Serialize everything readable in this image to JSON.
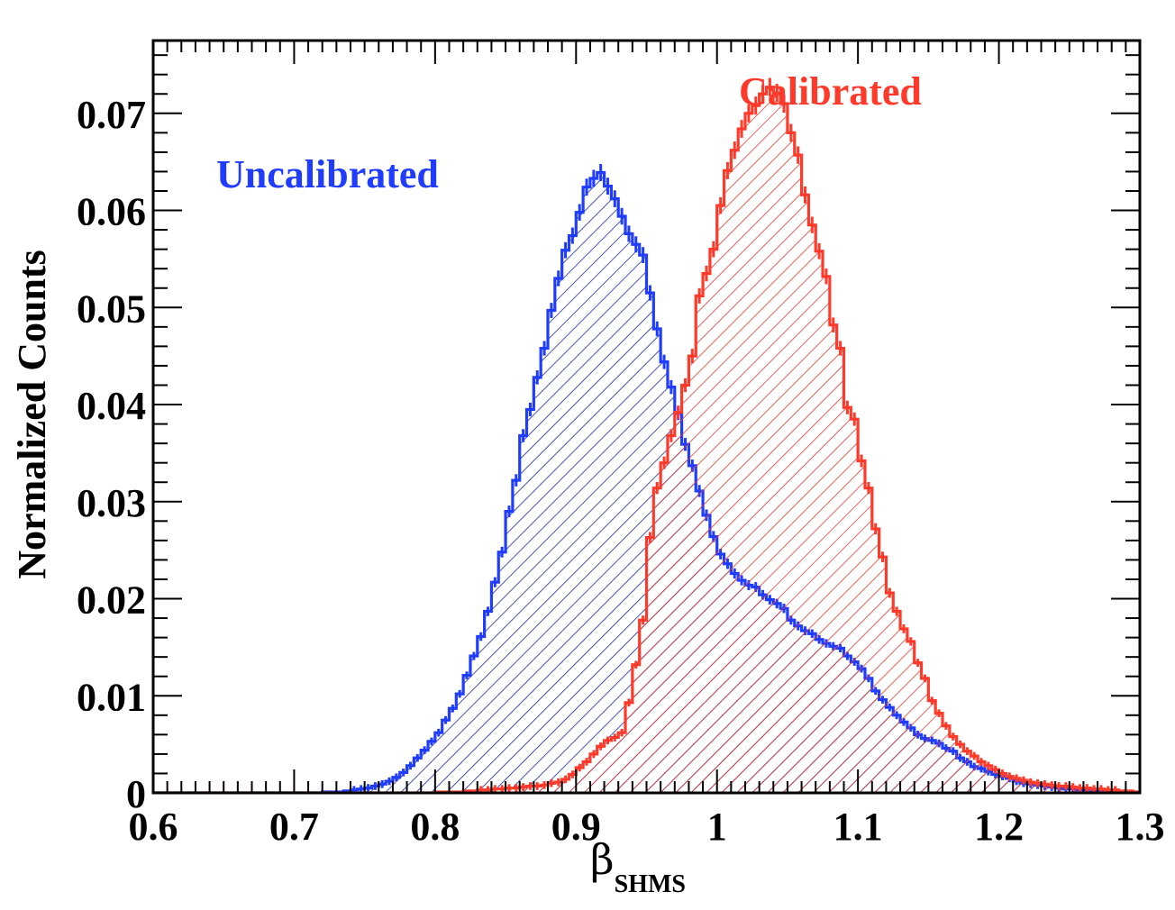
{
  "chart_data": {
    "type": "histogram",
    "title": "",
    "xlabel": "β",
    "xlabel_subscript": "SHMS",
    "ylabel": "Normalized Counts",
    "xlim": [
      0.6,
      1.3
    ],
    "ylim": [
      0,
      0.0775
    ],
    "x_ticks": [
      0.6,
      0.7,
      0.8,
      0.9,
      1.0,
      1.1,
      1.2,
      1.3
    ],
    "x_tick_labels": [
      "0.6",
      "0.7",
      "0.8",
      "0.9",
      "1",
      "1.1",
      "1.2",
      "1.3"
    ],
    "y_ticks": [
      0,
      0.01,
      0.02,
      0.03,
      0.04,
      0.05,
      0.06,
      0.07
    ],
    "y_tick_labels": [
      "0",
      "0.01",
      "0.02",
      "0.03",
      "0.04",
      "0.05",
      "0.06",
      "0.07"
    ],
    "bin_width": 0.005,
    "series": [
      {
        "name": "Uncalibrated",
        "color": "#1f3cff",
        "hatch_color": "#1a2a9a",
        "x_start": 0.6,
        "values": [
          0.0,
          0.0,
          0.0,
          0.0,
          0.0,
          0.0,
          0.0,
          0.0,
          0.0,
          0.0,
          0.0,
          0.0,
          0.0,
          0.0,
          0.0,
          0.0,
          0.0,
          0.0,
          0.0,
          0.0,
          0.0,
          0.0,
          0.0,
          0.0,
          0.0001,
          0.0001,
          0.0001,
          0.0002,
          0.0003,
          0.0004,
          0.0005,
          0.0007,
          0.0009,
          0.0012,
          0.0016,
          0.0021,
          0.0028,
          0.0036,
          0.0044,
          0.0053,
          0.0062,
          0.0075,
          0.0087,
          0.0102,
          0.0121,
          0.0141,
          0.0161,
          0.0187,
          0.0217,
          0.0248,
          0.029,
          0.0322,
          0.0368,
          0.0395,
          0.0428,
          0.0458,
          0.0497,
          0.053,
          0.0559,
          0.0574,
          0.0598,
          0.0624,
          0.0633,
          0.0639,
          0.0625,
          0.0612,
          0.0594,
          0.0576,
          0.0565,
          0.0554,
          0.0515,
          0.0478,
          0.0444,
          0.0418,
          0.0391,
          0.0359,
          0.0337,
          0.0311,
          0.0286,
          0.0264,
          0.0246,
          0.0236,
          0.0226,
          0.0219,
          0.0214,
          0.0212,
          0.0204,
          0.0199,
          0.0195,
          0.019,
          0.0178,
          0.0172,
          0.0167,
          0.0164,
          0.0158,
          0.0154,
          0.0151,
          0.0149,
          0.0141,
          0.0135,
          0.0128,
          0.0118,
          0.0105,
          0.0096,
          0.0088,
          0.008,
          0.0073,
          0.0067,
          0.006,
          0.0056,
          0.0054,
          0.0051,
          0.0046,
          0.0043,
          0.0036,
          0.0032,
          0.0027,
          0.0025,
          0.0022,
          0.0019,
          0.0017,
          0.0015,
          0.0012,
          0.001,
          0.0009,
          0.0008,
          0.0007,
          0.0006,
          0.0005,
          0.0004,
          0.0004,
          0.0003,
          0.0003,
          0.0002,
          0.0002,
          0.0002,
          0.0001,
          0.0001,
          0.0001,
          0.0001
        ]
      },
      {
        "name": "Calibrated",
        "color": "#ff3a2a",
        "hatch_color": "#e23a2e",
        "x_start": 0.6,
        "values": [
          0.0,
          0.0,
          0.0,
          0.0,
          0.0,
          0.0,
          0.0,
          0.0,
          0.0,
          0.0,
          0.0,
          0.0,
          0.0,
          0.0,
          0.0,
          0.0,
          0.0,
          0.0,
          0.0,
          0.0,
          0.0,
          0.0,
          0.0,
          0.0,
          0.0,
          0.0,
          0.0,
          0.0,
          0.0,
          0.0,
          0.0,
          0.0,
          0.0,
          0.0,
          0.0,
          0.0,
          0.0,
          0.0,
          0.0,
          0.0,
          0.0001,
          0.0001,
          0.0001,
          0.0001,
          0.0002,
          0.0002,
          0.0003,
          0.0003,
          0.0004,
          0.0004,
          0.0005,
          0.0005,
          0.0006,
          0.0007,
          0.0007,
          0.0008,
          0.001,
          0.0011,
          0.0014,
          0.0019,
          0.0026,
          0.0032,
          0.004,
          0.0048,
          0.0054,
          0.0057,
          0.0062,
          0.0093,
          0.0132,
          0.0178,
          0.0263,
          0.0314,
          0.034,
          0.0368,
          0.0392,
          0.042,
          0.045,
          0.0512,
          0.0535,
          0.056,
          0.0605,
          0.0641,
          0.0662,
          0.0684,
          0.07,
          0.0708,
          0.072,
          0.0727,
          0.0721,
          0.071,
          0.068,
          0.0657,
          0.0616,
          0.0585,
          0.0558,
          0.0532,
          0.0482,
          0.0458,
          0.0397,
          0.0385,
          0.0342,
          0.0314,
          0.0272,
          0.0243,
          0.0206,
          0.0187,
          0.0169,
          0.0156,
          0.0134,
          0.0118,
          0.0095,
          0.0082,
          0.0069,
          0.0058,
          0.005,
          0.0043,
          0.0038,
          0.0032,
          0.0028,
          0.0024,
          0.002,
          0.0017,
          0.0015,
          0.0013,
          0.0011,
          0.001,
          0.0009,
          0.0008,
          0.0007,
          0.0007,
          0.0006,
          0.0005,
          0.0005,
          0.0004,
          0.0004,
          0.0003,
          0.0003,
          0.0002,
          0.0002,
          0.0001
        ]
      }
    ],
    "annotations": [
      {
        "text": "Uncalibrated",
        "color": "#1f3cff"
      },
      {
        "text": "Calibrated",
        "color": "#ff3a2a"
      }
    ]
  }
}
